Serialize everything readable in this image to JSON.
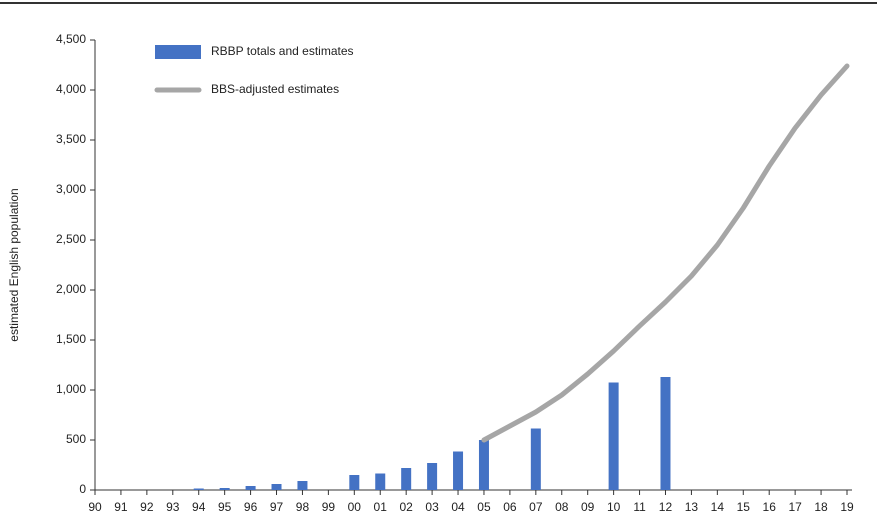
{
  "chart_data": {
    "type": "bar-line",
    "y_label": "estimated English population",
    "categories": [
      "90",
      "91",
      "92",
      "93",
      "94",
      "95",
      "96",
      "97",
      "98",
      "99",
      "00",
      "01",
      "02",
      "03",
      "04",
      "05",
      "06",
      "07",
      "08",
      "09",
      "10",
      "11",
      "12",
      "13",
      "14",
      "15",
      "16",
      "17",
      "18",
      "19"
    ],
    "series": [
      {
        "name": "RBBP totals and estimates",
        "type": "bar",
        "color": "#4472c4",
        "values": [
          null,
          null,
          null,
          null,
          15,
          20,
          40,
          60,
          90,
          null,
          150,
          165,
          220,
          270,
          385,
          500,
          null,
          615,
          null,
          null,
          1075,
          null,
          1130,
          null,
          null,
          null,
          null,
          null,
          null,
          null
        ]
      },
      {
        "name": "BBS-adjusted estimates",
        "type": "line",
        "color": "#a6a6a6",
        "values": [
          null,
          null,
          null,
          null,
          null,
          null,
          null,
          null,
          null,
          null,
          null,
          null,
          null,
          null,
          null,
          500,
          640,
          780,
          950,
          1160,
          1390,
          1640,
          1880,
          2140,
          2450,
          2820,
          3240,
          3620,
          3950,
          4240
        ]
      }
    ],
    "ylim": [
      0,
      4500
    ],
    "yticks": [
      0,
      {
        "value": 500,
        "label": "500"
      },
      {
        "value": 1000,
        "label": "1,000"
      },
      {
        "value": 1500,
        "label": "1,500"
      },
      {
        "value": 2000,
        "label": "2,000"
      },
      {
        "value": 2500,
        "label": "2,500"
      },
      {
        "value": 3000,
        "label": "3,000"
      },
      {
        "value": 3500,
        "label": "3,500"
      },
      {
        "value": 4000,
        "label": "4,000"
      },
      {
        "value": 4500,
        "label": "4,500"
      }
    ]
  }
}
